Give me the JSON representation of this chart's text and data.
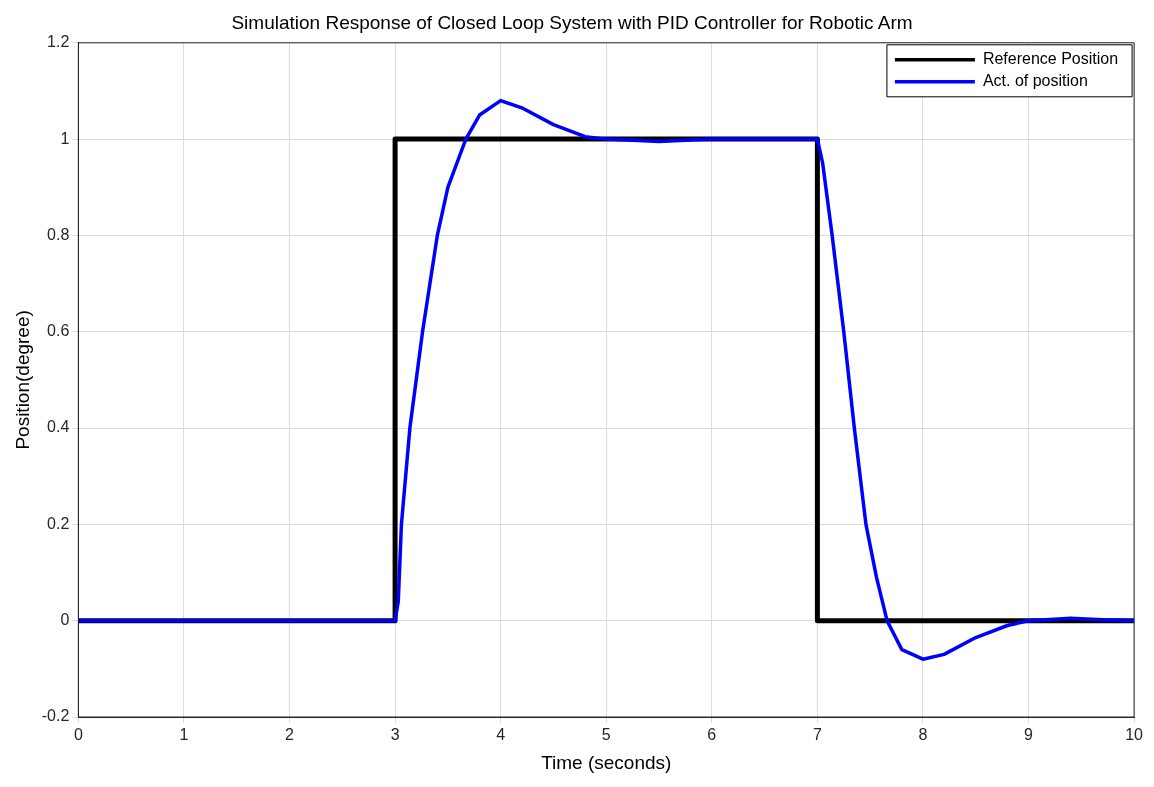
{
  "chart_data": {
    "type": "line",
    "title": "Simulation Response of Closed Loop System with PID Controller for Robotic Arm",
    "xlabel": "Time (seconds)",
    "ylabel": "Position(degree)",
    "xlim": [
      0,
      10
    ],
    "xticks": [
      0,
      1,
      2,
      3,
      4,
      5,
      6,
      7,
      8,
      9,
      10
    ],
    "ylim": [
      -0.2,
      1.2
    ],
    "yticks": [
      -0.2,
      0,
      0.2,
      0.4,
      0.6,
      0.8,
      1,
      1.2
    ],
    "grid": true,
    "legend": "top right",
    "marker": "none",
    "line_style": "solid",
    "series": [
      {
        "name": "Reference Position",
        "color": "#000000",
        "x": [
          0,
          3,
          3,
          7,
          7,
          10
        ],
        "values": [
          0,
          0,
          1,
          1,
          0,
          0
        ]
      },
      {
        "name": "Act. of position",
        "color": "#0000ff",
        "x": [
          0,
          3,
          3.03,
          3.06,
          3.14,
          3.26,
          3.4,
          3.5,
          3.67,
          3.8,
          4,
          4.2,
          4.5,
          4.8,
          5,
          5.5,
          6,
          7,
          7.05,
          7.14,
          7.25,
          7.35,
          7.46,
          7.56,
          7.66,
          7.8,
          8,
          8.2,
          8.5,
          8.8,
          9,
          9.4,
          9.7,
          10
        ],
        "values": [
          0,
          0,
          0.04,
          0.2,
          0.4,
          0.6,
          0.8,
          0.9,
          1,
          1.05,
          1.08,
          1.065,
          1.03,
          1.005,
          1,
          0.995,
          1,
          1,
          0.95,
          0.8,
          0.6,
          0.4,
          0.2,
          0.09,
          0,
          -0.06,
          -0.08,
          -0.07,
          -0.035,
          -0.01,
          0,
          0.005,
          0.002,
          0
        ]
      }
    ]
  }
}
